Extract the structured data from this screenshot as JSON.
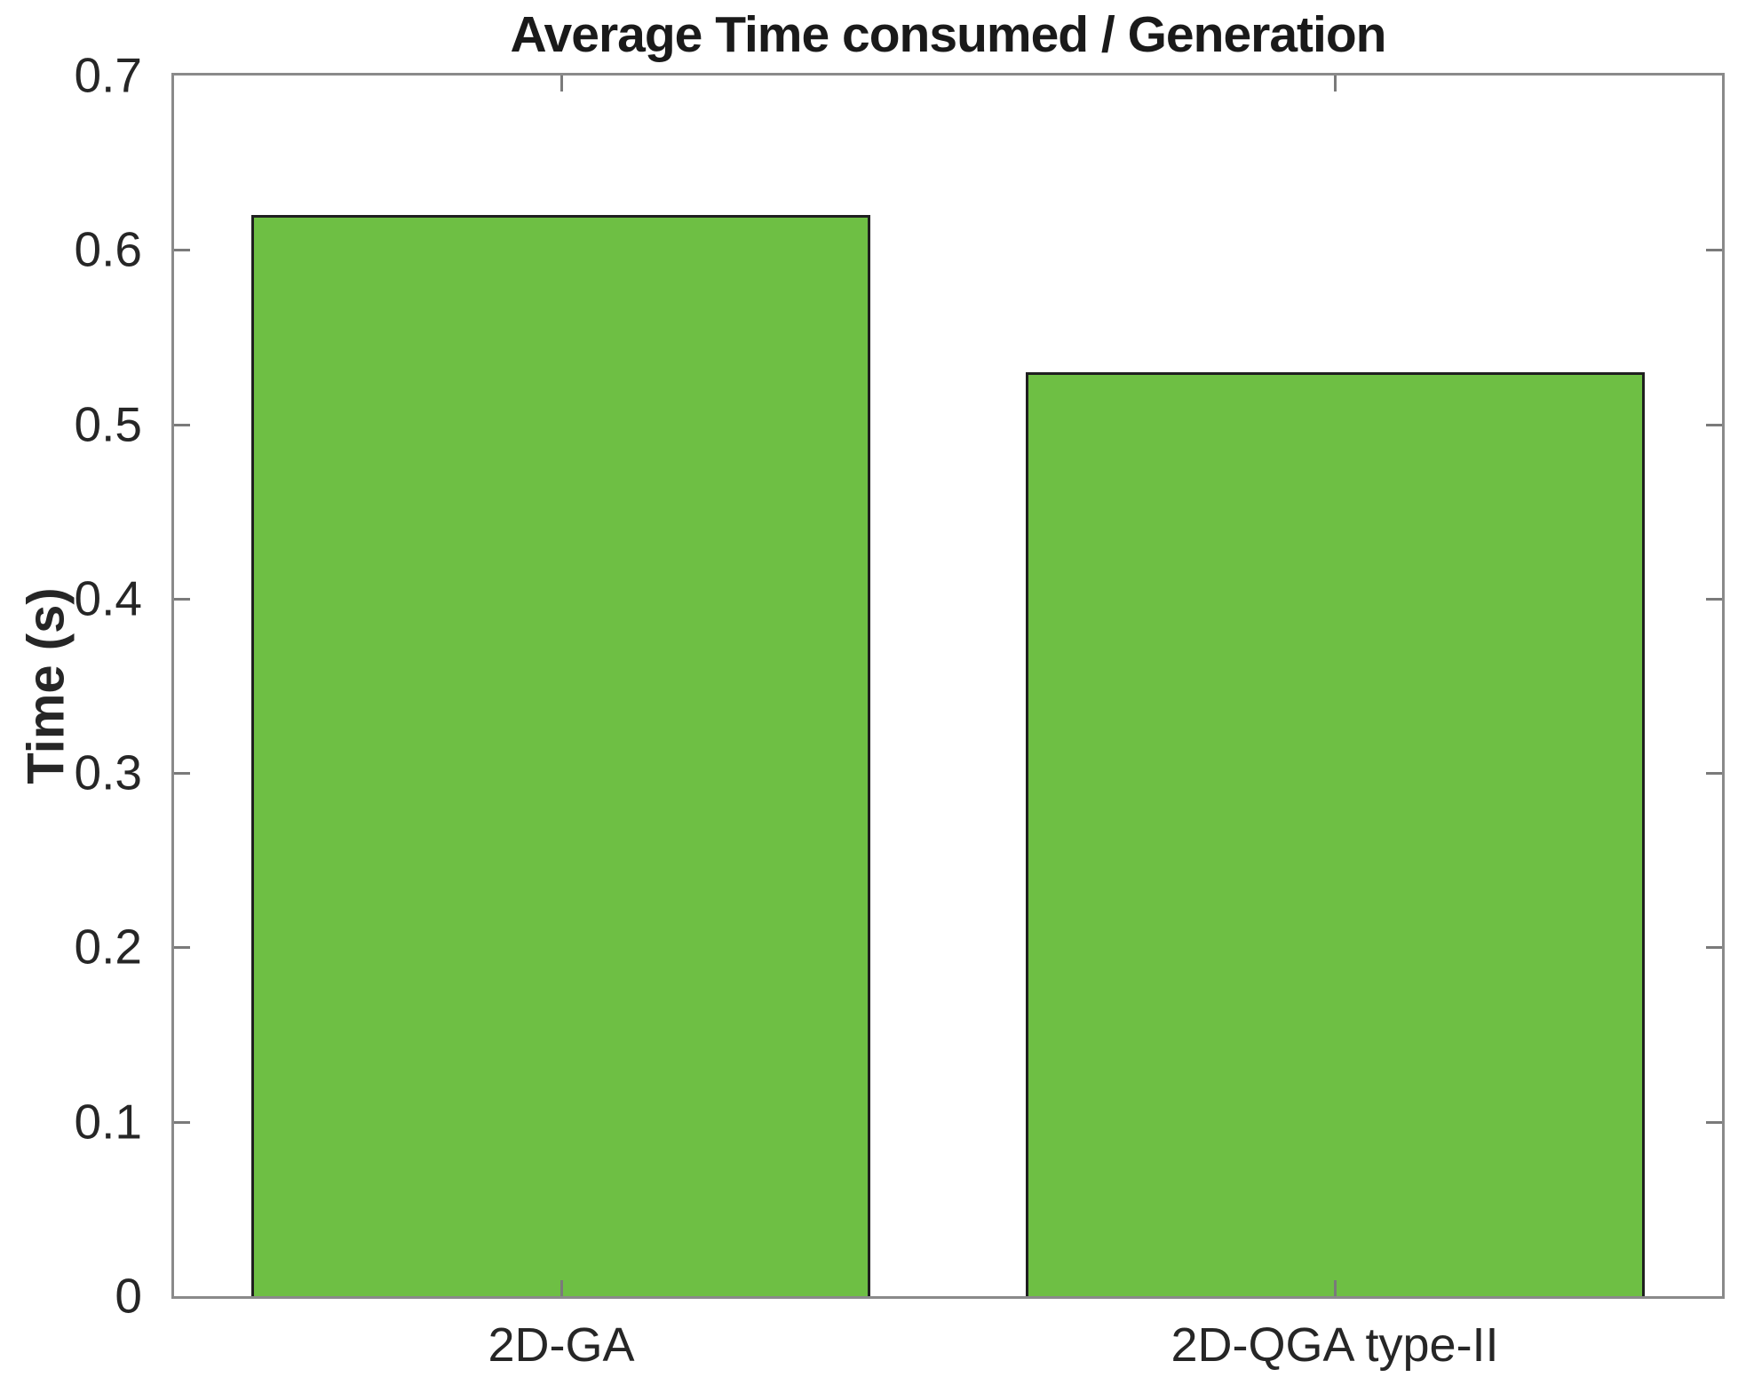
{
  "chart_data": {
    "type": "bar",
    "title": "Average Time consumed / Generation",
    "categories": [
      "2D-GA",
      "2D-QGA type-II"
    ],
    "values": [
      0.62,
      0.53
    ],
    "xlabel": "",
    "ylabel": "Time (s)",
    "ylim": [
      0,
      0.7
    ],
    "yticks": [
      0,
      0.1,
      0.2,
      0.3,
      0.4,
      0.5,
      0.6,
      0.7
    ],
    "bar_width": 0.8,
    "bar_color": "#6ebf44",
    "bar_edge_color": "#1f1f1f",
    "axis_color": "#8a8a8a",
    "tick_color": "#7a7a7a",
    "text_color": "#262626",
    "grid": false,
    "legend_position": "none"
  }
}
